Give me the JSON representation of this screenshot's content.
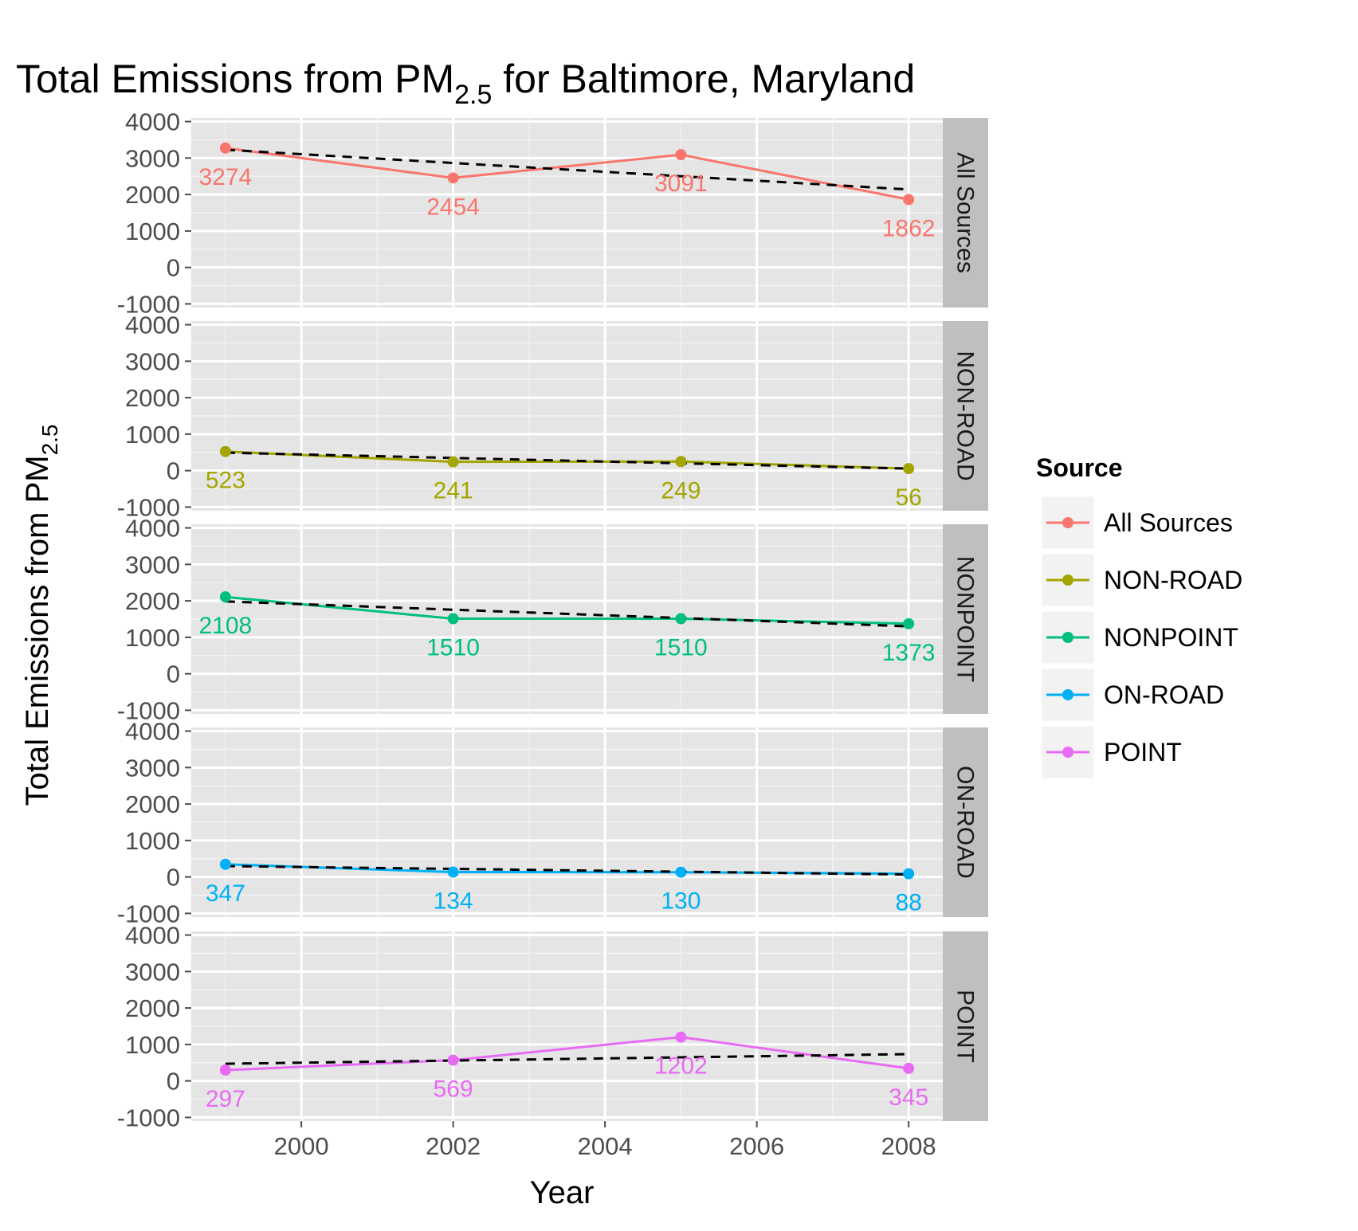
{
  "title": {
    "main": "Total Emissions from PM",
    "sub": "2.5",
    "rest": " for Baltimore, Maryland"
  },
  "ylabel": {
    "main": "Total Emissions from PM",
    "sub": "2.5"
  },
  "legend": {
    "title": "Source",
    "items": [
      "All Sources",
      "NON-ROAD",
      "NONPOINT",
      "ON-ROAD",
      "POINT"
    ],
    "colors": [
      "#F8766D",
      "#A3A500",
      "#00BF7D",
      "#00B0F6",
      "#E76BF3"
    ]
  },
  "chart_data": {
    "type": "line",
    "title": "Total Emissions from PM2.5 for Baltimore, Maryland",
    "xlabel": "Year",
    "ylabel": "Total Emissions from PM2.5",
    "x": [
      1999,
      2002,
      2005,
      2008
    ],
    "xticks": [
      2000,
      2002,
      2004,
      2006,
      2008
    ],
    "xlim": [
      1998.55,
      2008.45
    ],
    "yticks": [
      -1000,
      0,
      1000,
      2000,
      3000,
      4000
    ],
    "ylim": [
      -1100,
      4100
    ],
    "grid": true,
    "facets": "rows",
    "legend_position": "right",
    "trend_line": "dashed black linear fit per panel",
    "series": [
      {
        "name": "All Sources",
        "values": [
          3274,
          2454,
          3091,
          1862
        ],
        "labels": [
          "3274",
          "2454",
          "3091",
          "1862"
        ],
        "trend": [
          3227,
          2138
        ]
      },
      {
        "name": "NON-ROAD",
        "values": [
          523,
          241,
          249,
          56
        ],
        "labels": [
          "523",
          "241",
          "249",
          "56"
        ],
        "trend": [
          493,
          54
        ]
      },
      {
        "name": "NONPOINT",
        "values": [
          2108,
          1510,
          1510,
          1373
        ],
        "labels": [
          "2108",
          "1510",
          "1510",
          "1373"
        ],
        "trend": [
          1985,
          1301
        ]
      },
      {
        "name": "ON-ROAD",
        "values": [
          347,
          134,
          130,
          88
        ],
        "labels": [
          "347",
          "134",
          "130",
          "88"
        ],
        "trend": [
          298,
          67
        ]
      },
      {
        "name": "POINT",
        "values": [
          297,
          569,
          1202,
          345
        ],
        "labels": [
          "297",
          "569",
          "1202",
          "345"
        ],
        "trend": [
          471,
          735
        ]
      }
    ]
  }
}
